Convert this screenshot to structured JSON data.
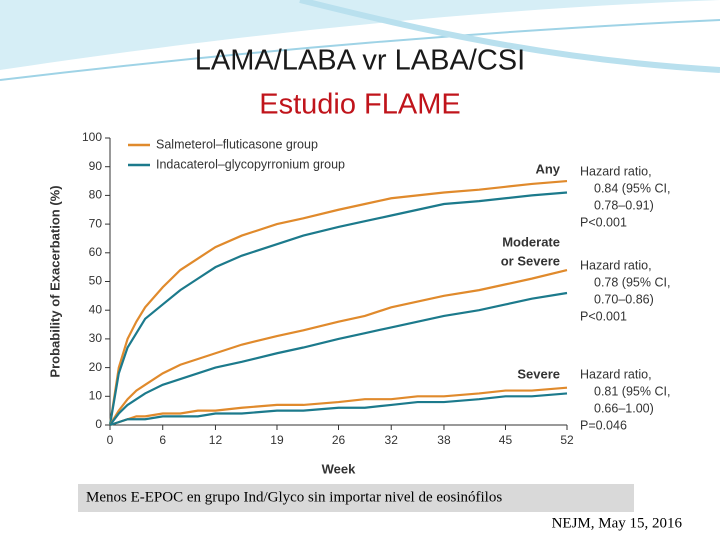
{
  "slide": {
    "title": "LAMA/LABA vr LABA/CSI",
    "subtitle": "Estudio FLAME",
    "note": "Menos E-EPOC en grupo Ind/Glyco sin importar nivel de eosinófilos",
    "citation": "NEJM, May 15, 2016"
  },
  "chart_data": {
    "type": "line",
    "y_label": "Probability of Exacerbation (%)",
    "x_label": "Week",
    "xlim": [
      0,
      52
    ],
    "xticks": [
      0,
      6,
      12,
      19,
      26,
      32,
      38,
      45,
      52
    ],
    "ylim": [
      0,
      100
    ],
    "yticks": [
      0,
      10,
      20,
      30,
      40,
      50,
      60,
      70,
      80,
      90,
      100
    ],
    "x": [
      0,
      1,
      2,
      3,
      4,
      6,
      8,
      10,
      12,
      15,
      19,
      22,
      26,
      29,
      32,
      35,
      38,
      42,
      45,
      48,
      52
    ],
    "series": [
      {
        "name": "Salmeterol–fluticasone group",
        "color": "#e08a2c",
        "values": [
          0,
          20,
          30,
          36,
          41,
          48,
          54,
          58,
          62,
          66,
          70,
          72,
          75,
          77,
          79,
          80,
          81,
          82,
          83,
          84,
          85
        ]
      },
      {
        "name": "Indacaterol–glycopyrronium group",
        "color": "#1c7a8c",
        "values": [
          0,
          18,
          27,
          32,
          37,
          42,
          47,
          51,
          55,
          59,
          63,
          66,
          69,
          71,
          73,
          75,
          77,
          78,
          79,
          80,
          81
        ]
      },
      {
        "color": "#e08a2c",
        "values": [
          0,
          5,
          9,
          12,
          14,
          18,
          21,
          23,
          25,
          28,
          31,
          33,
          36,
          38,
          41,
          43,
          45,
          47,
          49,
          51,
          54
        ]
      },
      {
        "color": "#1c7a8c",
        "values": [
          0,
          4,
          7,
          9,
          11,
          14,
          16,
          18,
          20,
          22,
          25,
          27,
          30,
          32,
          34,
          36,
          38,
          40,
          42,
          44,
          46
        ]
      },
      {
        "color": "#e08a2c",
        "values": [
          0,
          1,
          2,
          3,
          3,
          4,
          4,
          5,
          5,
          6,
          7,
          7,
          8,
          9,
          9,
          10,
          10,
          11,
          12,
          12,
          13
        ]
      },
      {
        "color": "#1c7a8c",
        "values": [
          0,
          1,
          2,
          2,
          2,
          3,
          3,
          3,
          4,
          4,
          5,
          5,
          6,
          6,
          7,
          8,
          8,
          9,
          10,
          10,
          11
        ]
      }
    ],
    "annotations": [
      {
        "label": [
          "Any"
        ],
        "stats": [
          "Hazard ratio,",
          "0.84 (95% CI,",
          "0.78–0.91)",
          "P<0.001"
        ]
      },
      {
        "label": [
          "Moderate",
          "or Severe"
        ],
        "stats": [
          "Hazard ratio,",
          "0.78 (95% CI,",
          "0.70–0.86)",
          "P<0.001"
        ]
      },
      {
        "label": [
          "Severe"
        ],
        "stats": [
          "Hazard ratio,",
          "0.81 (95% CI,",
          "0.66–1.00)",
          "P=0.046"
        ]
      }
    ]
  }
}
